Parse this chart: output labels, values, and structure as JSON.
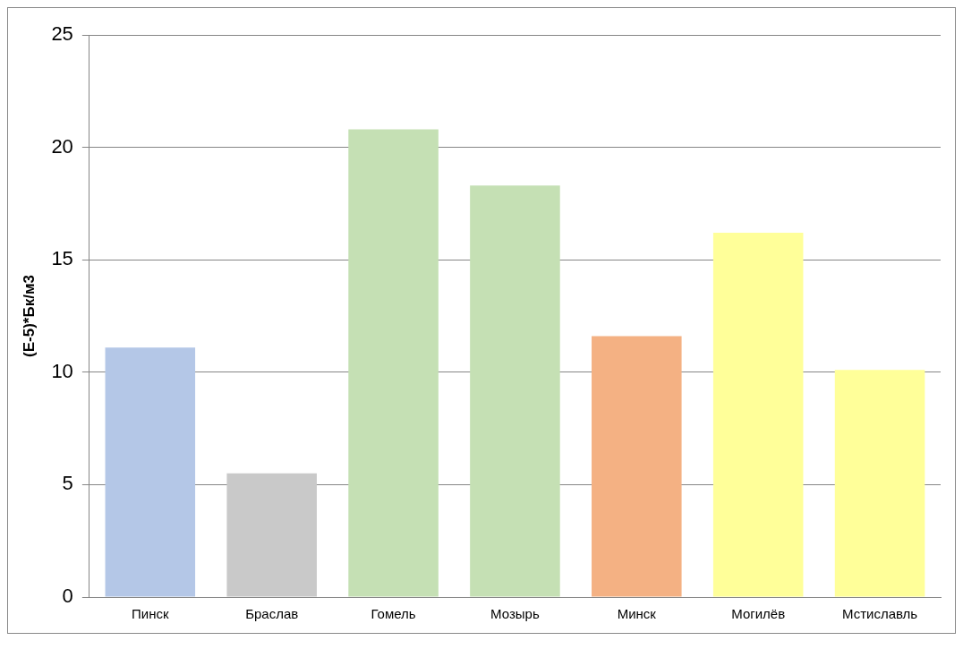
{
  "chart_data": {
    "type": "bar",
    "ylabel": "(E-5)*Бк/м3",
    "categories": [
      "Пинск",
      "Браслав",
      "Гомель",
      "Мозырь",
      "Минск",
      "Могилёв",
      "Мстиславль"
    ],
    "values": [
      11.1,
      5.5,
      20.8,
      18.3,
      11.6,
      16.2,
      10.1
    ],
    "colors": [
      "#b4c7e7",
      "#c9c9c9",
      "#c5e0b4",
      "#c5e0b4",
      "#f4b183",
      "#ffff99",
      "#ffff99"
    ],
    "ylim": [
      0,
      25
    ],
    "yticks": [
      0,
      5,
      10,
      15,
      20,
      25
    ],
    "grid": "y",
    "legend": false
  }
}
